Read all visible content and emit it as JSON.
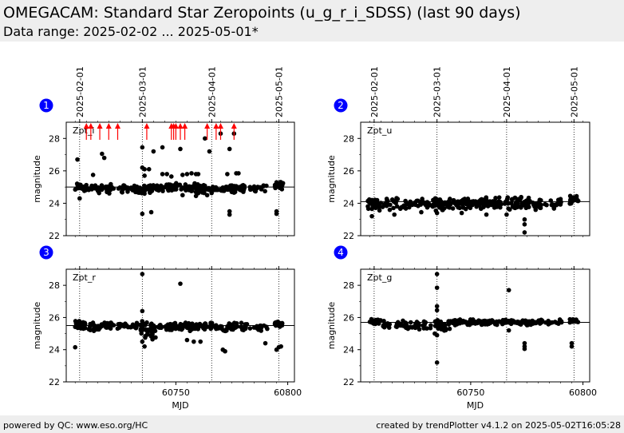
{
  "header": {
    "title": "OMEGACAM: Standard Star Zeropoints (u_g_r_i_SDSS) (last 90 days)",
    "subtitle": "Data range: 2025-02-02 ... 2025-05-01*"
  },
  "footer": {
    "left": "powered by QC: www.eso.org/HC",
    "right": "created by trendPlotter v4.1.2 on 2025-05-02T16:05:28"
  },
  "colors": {
    "marker": "#000000",
    "outlier": "#ff0000",
    "badge": "#0000ff",
    "header_bg": "#eeeeee"
  },
  "chart_data": [
    {
      "type": "scatter",
      "panel": "1",
      "label": "Zpt_i",
      "ylabel": "magnitude",
      "xlabel": "",
      "xlim": [
        60701,
        60803
      ],
      "ylim": [
        22,
        29
      ],
      "yticks": [
        22,
        24,
        26,
        28
      ],
      "xticks": [],
      "reference_line": 25.0,
      "date_marks": [
        {
          "label": "2025-02-01",
          "x": 60707
        },
        {
          "label": "2025-03-01",
          "x": 60735
        },
        {
          "label": "2025-04-01",
          "x": 60766
        },
        {
          "label": "2025-05-01",
          "x": 60796
        }
      ],
      "show_date_labels": true,
      "outlier_arrows": [
        60710,
        60712,
        60716,
        60720,
        60724,
        60737,
        60748,
        60749,
        60750,
        60752,
        60754,
        60764,
        60768,
        60770,
        60776
      ],
      "clusters": [
        {
          "x0": 60705,
          "x1": 60710,
          "y": 25.0,
          "spread": 0.35,
          "n": 30
        },
        {
          "x0": 60711,
          "x1": 60723,
          "y": 24.9,
          "spread": 0.35,
          "n": 40
        },
        {
          "x0": 60724,
          "x1": 60733,
          "y": 24.9,
          "spread": 0.3,
          "n": 24
        },
        {
          "x0": 60733,
          "x1": 60740,
          "y": 24.9,
          "spread": 0.35,
          "n": 40
        },
        {
          "x0": 60741,
          "x1": 60760,
          "y": 24.95,
          "spread": 0.3,
          "n": 70
        },
        {
          "x0": 60760,
          "x1": 60782,
          "y": 24.9,
          "spread": 0.3,
          "n": 70
        },
        {
          "x0": 60783,
          "x1": 60791,
          "y": 24.9,
          "spread": 0.25,
          "n": 16
        },
        {
          "x0": 60794,
          "x1": 60798,
          "y": 25.1,
          "spread": 0.25,
          "n": 22
        }
      ],
      "points": [
        [
          60706,
          26.7
        ],
        [
          60713,
          25.75
        ],
        [
          60717,
          27.05
        ],
        [
          60718,
          26.8
        ],
        [
          60735,
          27.45
        ],
        [
          60735,
          26.2
        ],
        [
          60736,
          26.1
        ],
        [
          60736,
          25.7
        ],
        [
          60738,
          26.1
        ],
        [
          60740,
          27.2
        ],
        [
          60744,
          27.45
        ],
        [
          60744,
          25.8
        ],
        [
          60746,
          25.8
        ],
        [
          60748,
          25.65
        ],
        [
          60752,
          27.35
        ],
        [
          60753,
          25.75
        ],
        [
          60755,
          25.8
        ],
        [
          60757,
          25.85
        ],
        [
          60759,
          25.8
        ],
        [
          60760,
          25.8
        ],
        [
          60763,
          28.0
        ],
        [
          60765,
          27.2
        ],
        [
          60770,
          28.3
        ],
        [
          60773,
          25.8
        ],
        [
          60774,
          27.35
        ],
        [
          60776,
          28.3
        ],
        [
          60777,
          25.85
        ],
        [
          60778,
          25.85
        ],
        [
          60735,
          23.35
        ],
        [
          60739,
          23.45
        ],
        [
          60774,
          23.5
        ],
        [
          60774,
          23.3
        ],
        [
          60795,
          23.35
        ],
        [
          60795,
          23.5
        ],
        [
          60707,
          24.3
        ],
        [
          60753,
          24.5
        ],
        [
          60759,
          24.45
        ],
        [
          60764,
          24.5
        ]
      ]
    },
    {
      "type": "scatter",
      "panel": "2",
      "label": "Zpt_u",
      "ylabel": "magnitude",
      "xlabel": "",
      "xlim": [
        60701,
        60803
      ],
      "ylim": [
        22,
        29
      ],
      "yticks": [
        22,
        24,
        26,
        28
      ],
      "xticks": [],
      "reference_line": 24.1,
      "date_marks": [
        {
          "label": "2025-02-01",
          "x": 60707
        },
        {
          "label": "2025-03-01",
          "x": 60735
        },
        {
          "label": "2025-04-01",
          "x": 60766
        },
        {
          "label": "2025-05-01",
          "x": 60796
        }
      ],
      "show_date_labels": true,
      "outlier_arrows": [],
      "clusters": [
        {
          "x0": 60704,
          "x1": 60708,
          "y": 24.0,
          "spread": 0.45,
          "n": 30
        },
        {
          "x0": 60708,
          "x1": 60724,
          "y": 23.95,
          "spread": 0.45,
          "n": 45
        },
        {
          "x0": 60724,
          "x1": 60732,
          "y": 24.0,
          "spread": 0.4,
          "n": 24
        },
        {
          "x0": 60733,
          "x1": 60741,
          "y": 23.95,
          "spread": 0.45,
          "n": 45
        },
        {
          "x0": 60742,
          "x1": 60760,
          "y": 24.0,
          "spread": 0.4,
          "n": 80
        },
        {
          "x0": 60760,
          "x1": 60782,
          "y": 24.0,
          "spread": 0.45,
          "n": 80
        },
        {
          "x0": 60783,
          "x1": 60791,
          "y": 24.0,
          "spread": 0.35,
          "n": 18
        },
        {
          "x0": 60794,
          "x1": 60798,
          "y": 24.2,
          "spread": 0.3,
          "n": 20
        }
      ],
      "points": [
        [
          60706,
          23.2
        ],
        [
          60716,
          23.3
        ],
        [
          60728,
          23.45
        ],
        [
          60735,
          23.4
        ],
        [
          60746,
          23.4
        ],
        [
          60757,
          23.3
        ],
        [
          60766,
          23.3
        ],
        [
          60774,
          23.0
        ],
        [
          60774,
          22.7
        ],
        [
          60774,
          22.2
        ]
      ]
    },
    {
      "type": "scatter",
      "panel": "3",
      "label": "Zpt_r",
      "ylabel": "magnitude",
      "xlabel": "MJD",
      "xlim": [
        60701,
        60803
      ],
      "ylim": [
        22,
        29
      ],
      "yticks": [
        22,
        24,
        26,
        28
      ],
      "xticks": [
        60750,
        60800
      ],
      "reference_line": 25.5,
      "date_marks": [
        {
          "label": "2025-02-01",
          "x": 60707
        },
        {
          "label": "2025-03-01",
          "x": 60735
        },
        {
          "label": "2025-04-01",
          "x": 60766
        },
        {
          "label": "2025-05-01",
          "x": 60796
        }
      ],
      "show_date_labels": false,
      "outlier_arrows": [],
      "clusters": [
        {
          "x0": 60705,
          "x1": 60710,
          "y": 25.55,
          "spread": 0.3,
          "n": 30
        },
        {
          "x0": 60711,
          "x1": 60724,
          "y": 25.45,
          "spread": 0.3,
          "n": 40
        },
        {
          "x0": 60724,
          "x1": 60733,
          "y": 25.45,
          "spread": 0.25,
          "n": 22
        },
        {
          "x0": 60734,
          "x1": 60741,
          "y": 25.2,
          "spread": 0.6,
          "n": 45
        },
        {
          "x0": 60741,
          "x1": 60760,
          "y": 25.4,
          "spread": 0.3,
          "n": 70
        },
        {
          "x0": 60760,
          "x1": 60782,
          "y": 25.4,
          "spread": 0.3,
          "n": 70
        },
        {
          "x0": 60783,
          "x1": 60791,
          "y": 25.4,
          "spread": 0.25,
          "n": 16
        },
        {
          "x0": 60794,
          "x1": 60798,
          "y": 25.6,
          "spread": 0.2,
          "n": 20
        }
      ],
      "points": [
        [
          60705,
          24.15
        ],
        [
          60735,
          28.7
        ],
        [
          60735,
          26.4
        ],
        [
          60736,
          24.2
        ],
        [
          60735,
          24.5
        ],
        [
          60752,
          28.1
        ],
        [
          60755,
          24.6
        ],
        [
          60758,
          24.5
        ],
        [
          60761,
          24.5
        ],
        [
          60771,
          24.0
        ],
        [
          60772,
          23.9
        ],
        [
          60790,
          24.4
        ],
        [
          60795,
          24.0
        ],
        [
          60796,
          24.15
        ],
        [
          60797,
          24.2
        ]
      ]
    },
    {
      "type": "scatter",
      "panel": "4",
      "label": "Zpt_g",
      "ylabel": "magnitude",
      "xlabel": "MJD",
      "xlim": [
        60701,
        60803
      ],
      "ylim": [
        22,
        29
      ],
      "yticks": [
        22,
        24,
        26,
        28
      ],
      "xticks": [
        60750,
        60800
      ],
      "reference_line": 25.7,
      "date_marks": [
        {
          "label": "2025-02-01",
          "x": 60707
        },
        {
          "label": "2025-03-01",
          "x": 60735
        },
        {
          "label": "2025-04-01",
          "x": 60766
        },
        {
          "label": "2025-05-01",
          "x": 60796
        }
      ],
      "show_date_labels": false,
      "outlier_arrows": [],
      "clusters": [
        {
          "x0": 60705,
          "x1": 60710,
          "y": 25.75,
          "spread": 0.2,
          "n": 28
        },
        {
          "x0": 60711,
          "x1": 60724,
          "y": 25.55,
          "spread": 0.3,
          "n": 40
        },
        {
          "x0": 60724,
          "x1": 60733,
          "y": 25.5,
          "spread": 0.3,
          "n": 20
        },
        {
          "x0": 60734,
          "x1": 60741,
          "y": 25.5,
          "spread": 0.4,
          "n": 40
        },
        {
          "x0": 60741,
          "x1": 60760,
          "y": 25.7,
          "spread": 0.2,
          "n": 70
        },
        {
          "x0": 60760,
          "x1": 60782,
          "y": 25.7,
          "spread": 0.2,
          "n": 70
        },
        {
          "x0": 60783,
          "x1": 60791,
          "y": 25.7,
          "spread": 0.2,
          "n": 14
        },
        {
          "x0": 60794,
          "x1": 60798,
          "y": 25.8,
          "spread": 0.15,
          "n": 18
        }
      ],
      "points": [
        [
          60735,
          28.7
        ],
        [
          60735,
          27.85
        ],
        [
          60735,
          26.7
        ],
        [
          60735,
          26.45
        ],
        [
          60734,
          25.0
        ],
        [
          60735,
          24.9
        ],
        [
          60735,
          23.2
        ],
        [
          60767,
          27.7
        ],
        [
          60767,
          25.2
        ],
        [
          60774,
          24.4
        ],
        [
          60774,
          24.2
        ],
        [
          60774,
          24.05
        ],
        [
          60795,
          24.4
        ],
        [
          60795,
          24.2
        ]
      ]
    }
  ]
}
